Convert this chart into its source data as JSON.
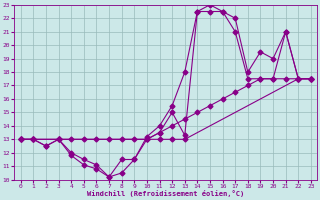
{
  "xlabel": "Windchill (Refroidissement éolien,°C)",
  "xlim": [
    -0.5,
    23.5
  ],
  "ylim": [
    10,
    23
  ],
  "xticks": [
    0,
    1,
    2,
    3,
    4,
    5,
    6,
    7,
    8,
    9,
    10,
    11,
    12,
    13,
    14,
    15,
    16,
    17,
    18,
    19,
    20,
    21,
    22,
    23
  ],
  "yticks": [
    10,
    11,
    12,
    13,
    14,
    15,
    16,
    17,
    18,
    19,
    20,
    21,
    22,
    23
  ],
  "bg_color": "#cce8e8",
  "line_color": "#880088",
  "grid_color": "#99bbbb",
  "curve1_x": [
    0,
    1,
    3,
    4,
    5,
    6,
    7,
    8,
    9,
    10,
    11,
    12,
    13,
    22,
    23
  ],
  "curve1_y": [
    13,
    13,
    13,
    13,
    13,
    13,
    13,
    13,
    13,
    13,
    13,
    13,
    13,
    17.5,
    17.5
  ],
  "curve2_x": [
    0,
    1,
    3,
    10,
    11,
    12,
    13,
    14,
    15,
    16,
    17,
    18,
    19,
    20,
    21,
    22,
    23
  ],
  "curve2_y": [
    13,
    13,
    13,
    13,
    13.5,
    14,
    14.5,
    15,
    15.5,
    16,
    16.5,
    17,
    17.5,
    17.5,
    17.5,
    17.5,
    17.5
  ],
  "curve3_x": [
    0,
    1,
    2,
    3,
    4,
    5,
    6,
    7,
    8,
    9,
    10,
    11,
    12,
    13,
    14,
    15,
    16,
    17,
    18,
    19,
    20,
    21,
    22,
    23
  ],
  "curve3_y": [
    13,
    13,
    12.5,
    13,
    11.8,
    11.1,
    10.8,
    10.2,
    10.5,
    11.5,
    13,
    13.5,
    15,
    13.3,
    22.5,
    23,
    22.5,
    22,
    18,
    19.5,
    19,
    21,
    17.5,
    17.5
  ],
  "curve4_x": [
    0,
    1,
    2,
    3,
    4,
    5,
    6,
    7,
    8,
    9,
    10,
    11,
    12,
    13,
    14,
    15,
    16,
    17,
    18,
    19,
    20,
    21,
    22,
    23
  ],
  "curve4_y": [
    13,
    13,
    12.5,
    13,
    12,
    11.5,
    11.1,
    10.2,
    11.5,
    11.5,
    13.2,
    14,
    15.5,
    18,
    22.5,
    22.5,
    22.5,
    21,
    17.5,
    17.5,
    17.5,
    21,
    17.5,
    17.5
  ]
}
